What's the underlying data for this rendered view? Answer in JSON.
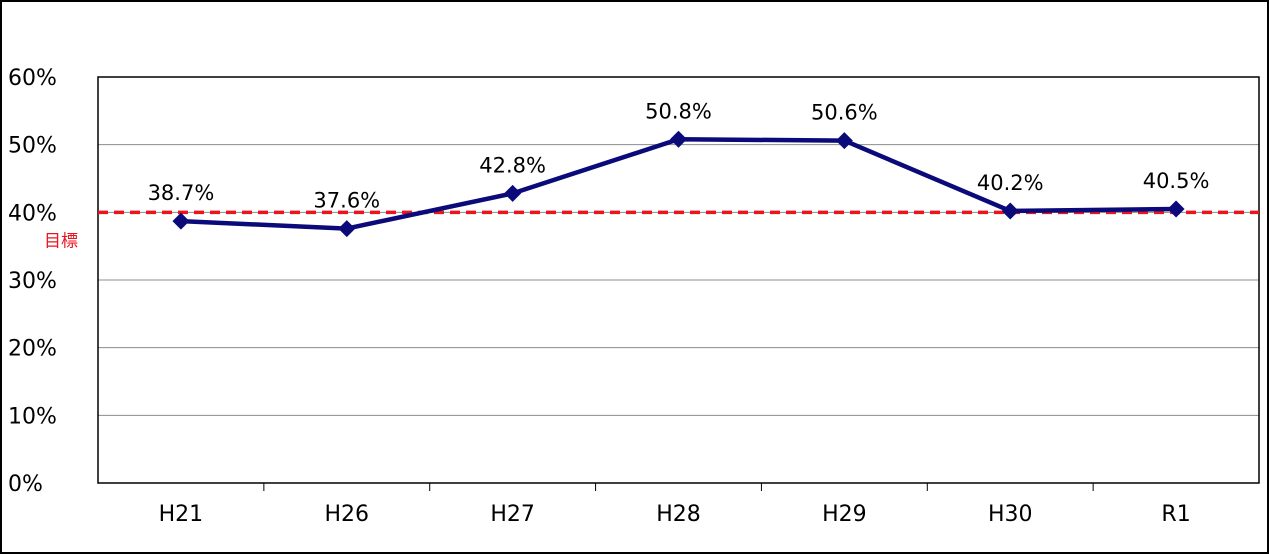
{
  "chart_data": {
    "type": "line",
    "categories": [
      "H21",
      "H26",
      "H27",
      "H28",
      "H29",
      "H30",
      "R1"
    ],
    "values": [
      38.7,
      37.6,
      42.8,
      50.8,
      50.6,
      40.2,
      40.5
    ],
    "data_labels": [
      "38.7%",
      "37.6%",
      "42.8%",
      "50.8%",
      "50.6%",
      "40.2%",
      "40.5%"
    ],
    "y_ticks": [
      "0%",
      "10%",
      "20%",
      "30%",
      "40%",
      "50%",
      "60%"
    ],
    "ylim": [
      0,
      60
    ],
    "grid": true,
    "target": {
      "value": 40,
      "label": "目標",
      "color": "#e8141e"
    },
    "series_color": "#0a0a7a"
  }
}
